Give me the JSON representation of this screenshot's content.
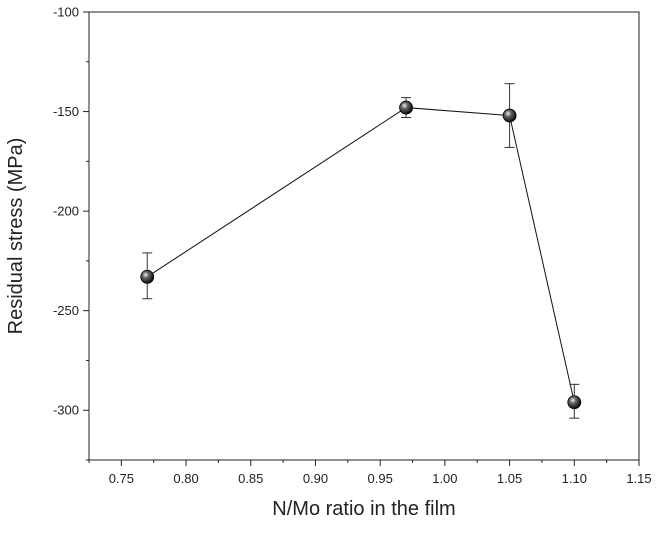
{
  "chart_data": {
    "type": "scatter",
    "title": "",
    "xlabel": "N/Mo ratio in the film",
    "ylabel": "Residual stress (MPa)",
    "xlim": [
      0.725,
      1.15
    ],
    "ylim": [
      -325,
      -100
    ],
    "x_ticks": [
      0.75,
      0.8,
      0.85,
      0.9,
      0.95,
      1.0,
      1.05,
      1.1,
      1.15
    ],
    "x_tick_labels": [
      "0.75",
      "0.80",
      "0.85",
      "0.90",
      "0.95",
      "1.00",
      "1.05",
      "1.10",
      "1.15"
    ],
    "y_ticks": [
      -300,
      -250,
      -200,
      -150,
      -100
    ],
    "y_tick_labels": [
      "-300",
      "-250",
      "-200",
      "-150",
      "-100"
    ],
    "grid": false,
    "legend": "none",
    "series": [
      {
        "x": [
          0.77,
          0.97,
          1.05,
          1.1
        ],
        "y": [
          -233,
          -148,
          -152,
          -296
        ],
        "error": [
          {
            "low": 11,
            "high": 12
          },
          {
            "low": 5,
            "high": 5
          },
          {
            "low": 16,
            "high": 16
          },
          {
            "low": 8,
            "high": 9
          }
        ],
        "line": true,
        "marker": "sphere",
        "color": "#111111"
      }
    ]
  }
}
